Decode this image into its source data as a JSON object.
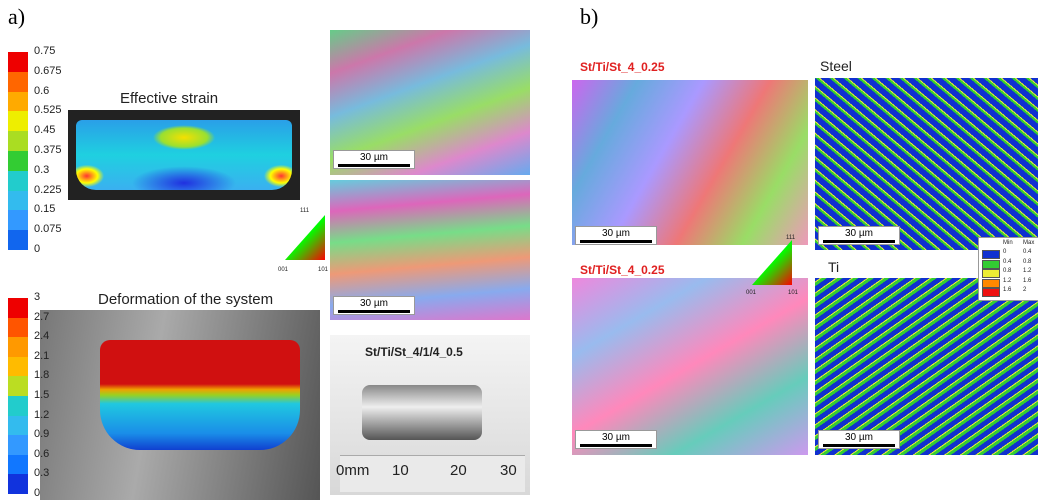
{
  "panel_a": {
    "label": "a)",
    "strain_scale": [
      "0.75",
      "0.675",
      "0.6",
      "0.525",
      "0.45",
      "0.375",
      "0.3",
      "0.225",
      "0.15",
      "0.075",
      "0"
    ],
    "strain_title": "Effective strain",
    "deformation_scale": [
      "3",
      "2.7",
      "2.4",
      "2.1",
      "1.8",
      "1.5",
      "1.2",
      "0.9",
      "0.6",
      "0.3",
      "0"
    ],
    "deformation_title": "Deformation of the system",
    "scale_bars": [
      "30 µm",
      "30 µm"
    ],
    "ipf_labels": [
      "111",
      "001",
      "101"
    ],
    "sample_label": "St/Ti/St_4/1/4_0.5",
    "ruler_labels": [
      "0mm",
      "10",
      "20",
      "30"
    ]
  },
  "panel_b": {
    "label": "b)",
    "sample_labels": [
      "St/Ti/St_4_0.25",
      "St/Ti/St_4_0.25"
    ],
    "map_titles": [
      "Steel",
      "Ti"
    ],
    "scale_bars": [
      "30 µm",
      "30 µm",
      "30 µm",
      "30 µm"
    ],
    "ipf_labels": [
      "111",
      "001",
      "101"
    ],
    "legend": {
      "header": [
        "Min",
        "Max"
      ],
      "rows": [
        [
          "0",
          "0.4"
        ],
        [
          "0.4",
          "0.8"
        ],
        [
          "0.8",
          "1.2"
        ],
        [
          "1.2",
          "1.6"
        ],
        [
          "1.6",
          "2"
        ]
      ]
    }
  }
}
